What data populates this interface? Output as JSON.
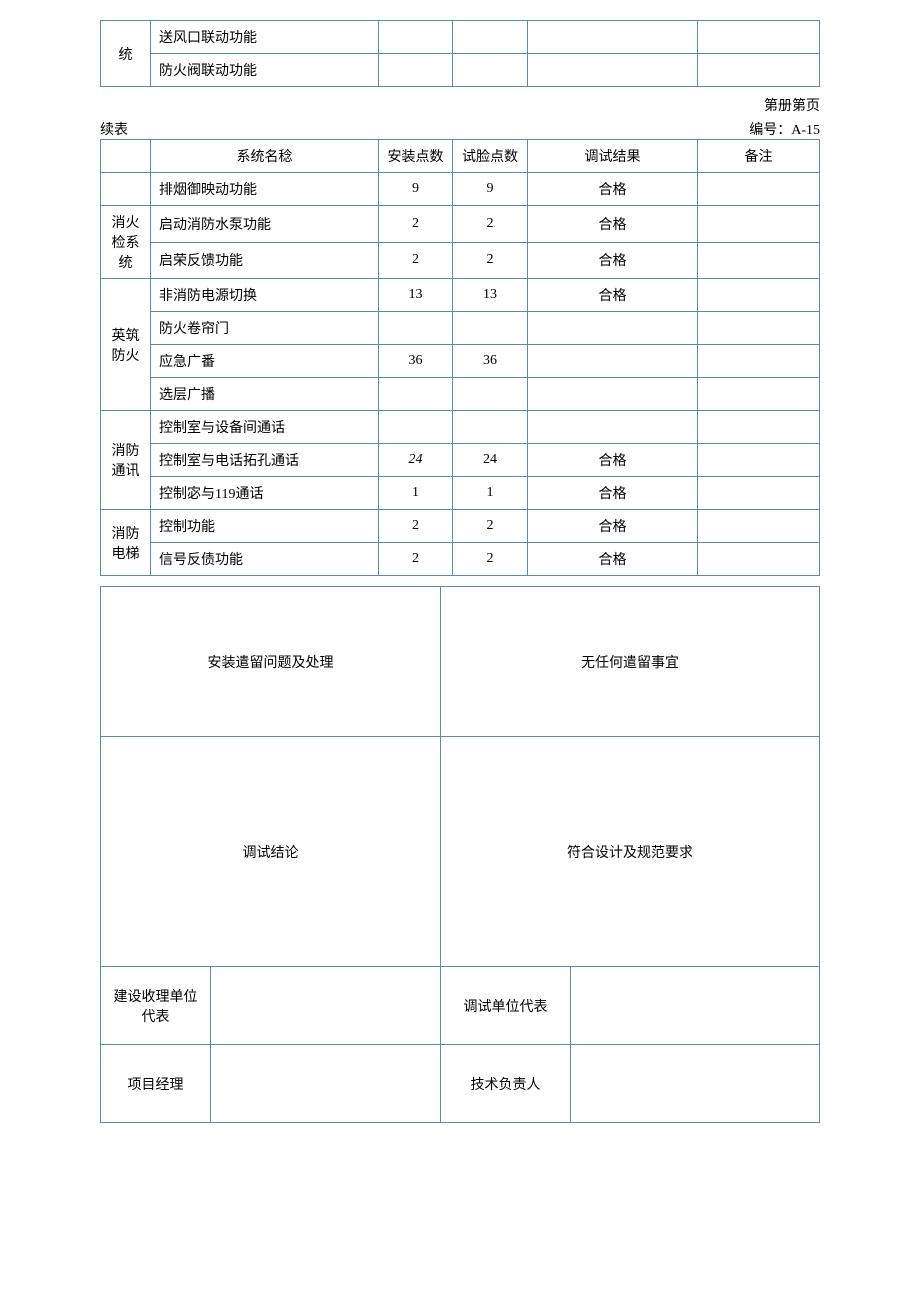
{
  "top_table": {
    "category": "统",
    "rows": [
      {
        "name": "送风口联动功能",
        "v1": "",
        "v2": "",
        "v3": "",
        "v4": ""
      },
      {
        "name": "防火阀联动功能",
        "v1": "",
        "v2": "",
        "v3": "",
        "v4": ""
      }
    ]
  },
  "page_header": "第册第页",
  "cont_label": "续表",
  "doc_number_label": "编号：A-15",
  "main_table": {
    "headers": {
      "cat": "",
      "name": "系统名稔",
      "install": "安装点数",
      "test": "试脸点数",
      "result": "调试结果",
      "remark": "备注"
    },
    "groups": [
      {
        "category": "消火检系统",
        "rows": [
          {
            "name": "排烟御映动功能",
            "install": "9",
            "test": "9",
            "result": "合格",
            "remark": "",
            "first_no_cat": true
          },
          {
            "name": "启动消防水泵功能",
            "install": "2",
            "test": "2",
            "result": "合格",
            "remark": ""
          },
          {
            "name": "启荣反馈功能",
            "install": "2",
            "test": "2",
            "result": "合格",
            "remark": ""
          }
        ]
      },
      {
        "category": "英筑防火",
        "rows": [
          {
            "name": "非消防电源切换",
            "install": "13",
            "test": "13",
            "result": "合格",
            "remark": ""
          },
          {
            "name": "防火卷帘门",
            "install": "",
            "test": "",
            "result": "",
            "remark": ""
          },
          {
            "name": "应急广番",
            "install": "36",
            "test": "36",
            "result": "",
            "remark": ""
          },
          {
            "name": "选层广播",
            "install": "",
            "test": "",
            "result": "",
            "remark": ""
          }
        ]
      },
      {
        "category": "消防通讯",
        "rows": [
          {
            "name": "控制室与设备间通话",
            "install": "",
            "test": "",
            "result": "",
            "remark": ""
          },
          {
            "name": "控制室与电话拓孔通话",
            "install": "24",
            "install_italic": true,
            "test": "24",
            "result": "合格",
            "remark": ""
          },
          {
            "name": "控制宓与119通话",
            "install": "1",
            "test": "1",
            "result": "合格",
            "remark": ""
          }
        ]
      },
      {
        "category": "消防电梯",
        "rows": [
          {
            "name": "控制功能",
            "install": "2",
            "test": "2",
            "result": "合格",
            "remark": ""
          },
          {
            "name": "信号反债功能",
            "install": "2",
            "test": "2",
            "result": "合格",
            "remark": ""
          }
        ]
      }
    ]
  },
  "lower_table": {
    "issues_label": "安装遣留问题及处理",
    "issues_value": "无任何遣留事宜",
    "conclusion_label": "调试结论",
    "conclusion_value": "符合设计及规范要求",
    "sig_row1": {
      "label1": "建设收理单位代表",
      "val1": "",
      "label2": "调试单位代表",
      "val2": ""
    },
    "sig_row2": {
      "label1": "项目经理",
      "val1": "",
      "label2": "技术负责人",
      "val2": ""
    }
  }
}
